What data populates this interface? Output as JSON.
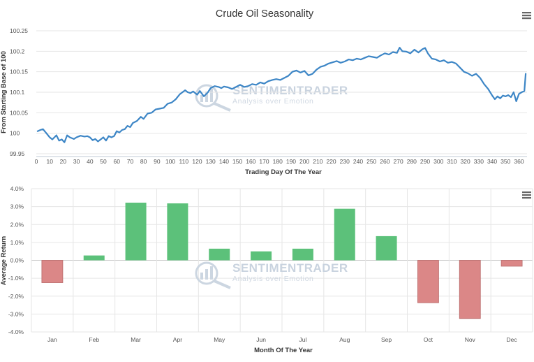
{
  "colors": {
    "line": "#3d86c6",
    "positive_bar": "#5cc17a",
    "negative_bar": "#db8787",
    "grid": "#e6e6e6",
    "axis": "#bfcad6",
    "watermark": "#c9d3df"
  },
  "watermark": {
    "brand": "SENTIMENTRADER",
    "tagline": "Analysis over Emotion"
  },
  "menu_icon": "hamburger-menu-icon",
  "chart_data": [
    {
      "type": "line",
      "title": "Crude Oil Seasonality",
      "xlabel": "Trading Day Of The Year",
      "ylabel": "From Starting Base of 100",
      "xlim": [
        0,
        366
      ],
      "ylim": [
        99.95,
        100.25
      ],
      "x_ticks": [
        0,
        10,
        20,
        30,
        40,
        50,
        60,
        70,
        80,
        90,
        100,
        110,
        120,
        130,
        140,
        150,
        160,
        170,
        180,
        190,
        200,
        210,
        220,
        230,
        240,
        250,
        260,
        270,
        280,
        290,
        300,
        310,
        320,
        330,
        340,
        350,
        360
      ],
      "y_ticks": [
        "99.95",
        "100",
        "100.05",
        "100.1",
        "100.15",
        "100.2",
        "100.25"
      ],
      "series": [
        {
          "name": "Crude Oil",
          "x": [
            1,
            3,
            5,
            8,
            10,
            12,
            15,
            17,
            19,
            21,
            23,
            25,
            28,
            30,
            33,
            36,
            38,
            40,
            42,
            44,
            46,
            48,
            50,
            52,
            54,
            56,
            58,
            60,
            62,
            64,
            66,
            68,
            70,
            72,
            75,
            78,
            80,
            83,
            86,
            89,
            92,
            95,
            98,
            101,
            104,
            107,
            109,
            111,
            113,
            115,
            117,
            120,
            122,
            125,
            128,
            130,
            133,
            136,
            138,
            140,
            143,
            146,
            149,
            152,
            155,
            158,
            161,
            164,
            167,
            170,
            173,
            176,
            179,
            182,
            185,
            188,
            191,
            194,
            197,
            200,
            203,
            206,
            209,
            212,
            215,
            218,
            221,
            224,
            227,
            230,
            233,
            236,
            239,
            242,
            245,
            248,
            251,
            254,
            257,
            260,
            263,
            266,
            269,
            271,
            273,
            276,
            279,
            282,
            285,
            288,
            290,
            292,
            295,
            298,
            301,
            304,
            307,
            310,
            313,
            316,
            319,
            322,
            325,
            328,
            331,
            334,
            337,
            340,
            342,
            344,
            346,
            348,
            350,
            352,
            354,
            356,
            358,
            360,
            362,
            364,
            365
          ],
          "values": [
            100.005,
            100.008,
            100.01,
            99.998,
            99.99,
            99.985,
            99.995,
            99.982,
            99.985,
            99.978,
            99.995,
            99.99,
            99.986,
            99.99,
            99.994,
            99.992,
            99.993,
            99.99,
            99.983,
            99.986,
            99.98,
            99.985,
            99.99,
            99.982,
            99.993,
            99.99,
            99.993,
            100.005,
            100.002,
            100.008,
            100.01,
            100.018,
            100.015,
            100.025,
            100.03,
            100.04,
            100.035,
            100.048,
            100.05,
            100.058,
            100.06,
            100.062,
            100.072,
            100.075,
            100.083,
            100.095,
            100.1,
            100.105,
            100.1,
            100.098,
            100.102,
            100.094,
            100.103,
            100.09,
            100.1,
            100.11,
            100.115,
            100.113,
            100.11,
            100.114,
            100.112,
            100.108,
            100.113,
            100.118,
            100.113,
            100.115,
            100.12,
            100.118,
            100.124,
            100.121,
            100.127,
            100.13,
            100.132,
            100.13,
            100.135,
            100.14,
            100.15,
            100.153,
            100.148,
            100.152,
            100.141,
            100.145,
            100.155,
            100.162,
            100.165,
            100.17,
            100.173,
            100.176,
            100.172,
            100.175,
            100.18,
            100.178,
            100.182,
            100.18,
            100.184,
            100.188,
            100.186,
            100.184,
            100.19,
            100.195,
            100.192,
            100.198,
            100.196,
            100.209,
            100.2,
            100.199,
            100.195,
            100.204,
            100.197,
            100.205,
            100.208,
            100.195,
            100.182,
            100.18,
            100.175,
            100.178,
            100.172,
            100.174,
            100.17,
            100.16,
            100.15,
            100.146,
            100.14,
            100.145,
            100.135,
            100.12,
            100.108,
            100.092,
            100.083,
            100.09,
            100.085,
            100.092,
            100.09,
            100.093,
            100.088,
            100.1,
            100.078,
            100.096,
            100.1,
            100.103,
            100.145
          ]
        }
      ]
    },
    {
      "type": "bar",
      "title": "",
      "xlabel": "Month Of The Year",
      "ylabel": "Average Return",
      "ylim": [
        -4.0,
        4.0
      ],
      "y_ticks": [
        "4.0%",
        "3.0%",
        "2.0%",
        "1.0%",
        "0.0%",
        "-1.0%",
        "-2.0%",
        "-3.0%",
        "-4.0%"
      ],
      "categories": [
        "Jan",
        "Feb",
        "Mar",
        "Apr",
        "May",
        "Jun",
        "Jul",
        "Aug",
        "Sep",
        "Oct",
        "Nov",
        "Dec"
      ],
      "values": [
        -1.25,
        0.27,
        3.22,
        3.18,
        0.65,
        0.5,
        0.65,
        2.88,
        1.35,
        -2.37,
        -3.25,
        -0.33
      ]
    }
  ]
}
